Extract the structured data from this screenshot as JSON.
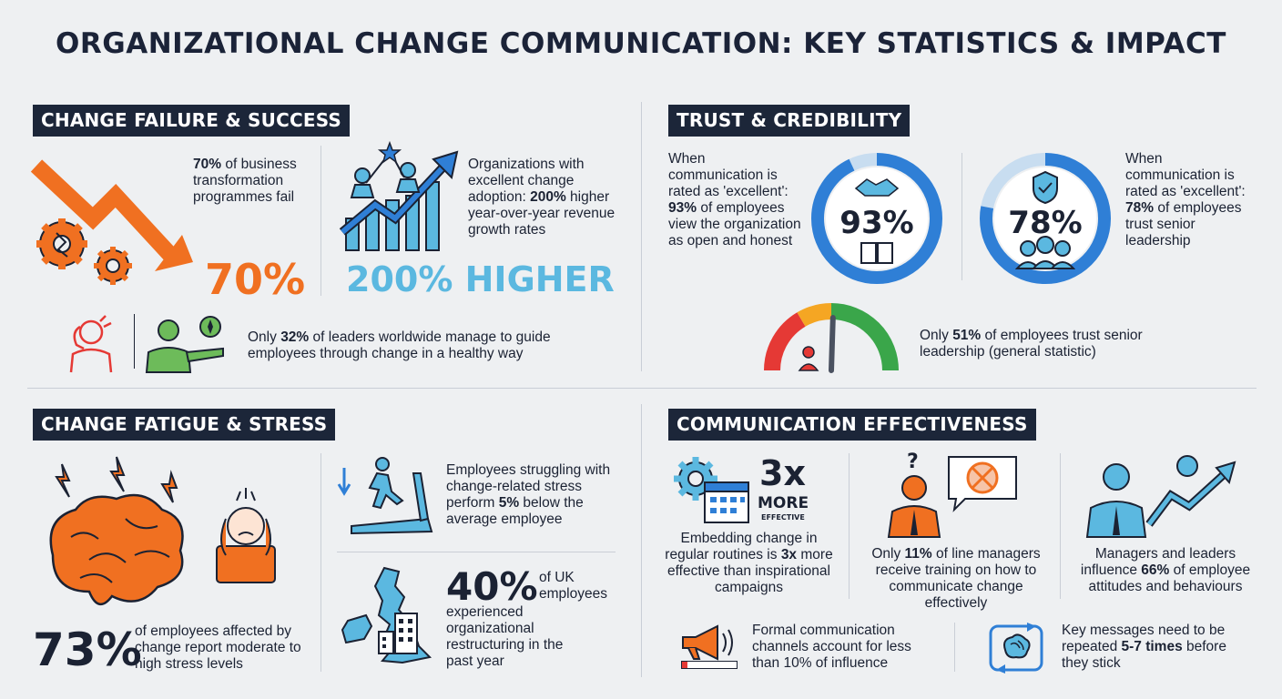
{
  "title": "ORGANIZATIONAL CHANGE COMMUNICATION: KEY STATISTICS & IMPACT",
  "colors": {
    "navy": "#1c2639",
    "orange": "#f07021",
    "light_blue": "#5bb8e0",
    "blue": "#2f7fd6",
    "green": "#3aa64a",
    "red": "#e53935"
  },
  "sections": {
    "change_failure": {
      "heading": "CHANGE FAILURE & SUCCESS",
      "fail_text_bold": "70%",
      "fail_text": " of business transformation programmes fail",
      "fail_big": "70%",
      "growth_text_pre": "Organizations with excellent change adoption: ",
      "growth_text_bold": "200%",
      "growth_text_post": " higher year-over-year revenue growth rates",
      "growth_big": "200% HIGHER",
      "leaders_pre": "Only ",
      "leaders_bold": "32%",
      "leaders_post": " of leaders worldwide manage to guide employees through change in a healthy way"
    },
    "trust": {
      "heading": "TRUST & CREDIBILITY",
      "left_pre": "When communication is rated as 'excellent': ",
      "left_bold": "93%",
      "left_post": " of employees view the organization as open and honest",
      "left_ring": "93%",
      "left_value": 93,
      "right_pre": "When communication is rated as 'excellent': ",
      "right_bold": "78%",
      "right_post": " of employees trust senior leadership",
      "right_ring": "78%",
      "right_value": 78,
      "gauge_pre": "Only ",
      "gauge_bold": "51%",
      "gauge_post": " of employees trust senior leadership (general statistic)",
      "gauge_value": 51
    },
    "fatigue": {
      "heading": "CHANGE FATIGUE & STRESS",
      "stress_big": "73%",
      "stress_text": "of employees affected by change report moderate to high stress levels",
      "perf_pre": "Employees struggling with change-related stress perform ",
      "perf_bold": "5%",
      "perf_post": " below the average employee",
      "uk_big": "40%",
      "uk_small": "of UK employees",
      "uk_text": "experienced organizational restructuring in the past year"
    },
    "effectiveness": {
      "heading": "COMMUNICATION EFFECTIVENESS",
      "x_big": "3x",
      "x_more": "MORE",
      "x_effective": "EFFECTIVE",
      "routine_pre": "Embedding change in regular routines is ",
      "routine_bold": "3x",
      "routine_post": " more effective than inspirational campaigns",
      "managers_pre": "Only ",
      "managers_bold": "11%",
      "managers_post": " of line managers receive training on how to communicate change effectively",
      "influence_pre": "Managers and leaders influence ",
      "influence_bold": "66%",
      "influence_post": " of employee attitudes and behaviours",
      "formal_text": "Formal communication channels account for less than 10% of influence",
      "formal_value": 10,
      "repeat_pre": "Key messages need to be repeated ",
      "repeat_bold": "5-7 times",
      "repeat_post": " before they stick"
    }
  }
}
